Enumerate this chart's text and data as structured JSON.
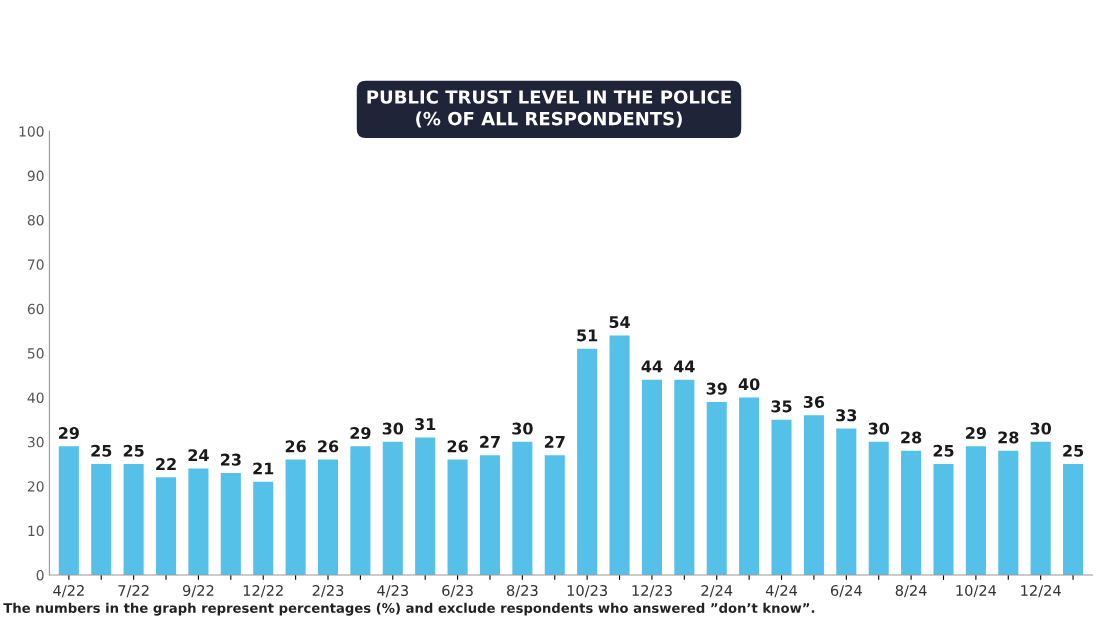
{
  "chart_data": {
    "type": "bar",
    "title": "PUBLIC TRUST LEVEL IN THE POLICE\n(% OF ALL RESPONDENTS)",
    "categories": [
      "4/22",
      null,
      "7/22",
      null,
      "9/22",
      null,
      "12/22",
      null,
      "2/23",
      null,
      "4/23",
      null,
      "6/23",
      null,
      "8/23",
      null,
      "10/23",
      null,
      "12/23",
      null,
      "2/24",
      null,
      "4/24",
      null,
      "6/24",
      null,
      "8/24",
      null,
      "10/24",
      null,
      "12/24",
      null
    ],
    "values": [
      29,
      25,
      25,
      22,
      24,
      23,
      21,
      26,
      26,
      29,
      30,
      31,
      26,
      27,
      30,
      27,
      51,
      54,
      44,
      44,
      39,
      40,
      35,
      36,
      33,
      30,
      28,
      25,
      29,
      28,
      30,
      25
    ],
    "color": "#56c1e8",
    "ylim": [
      0,
      100
    ],
    "yticks": [
      0,
      10,
      20,
      30,
      40,
      50,
      60,
      70,
      80,
      90,
      100
    ],
    "grid": false,
    "data_labels": true,
    "annotations": [
      "The numbers in the graph represent percentages (%) and exclude respondents who answered ”don’t know”."
    ]
  }
}
